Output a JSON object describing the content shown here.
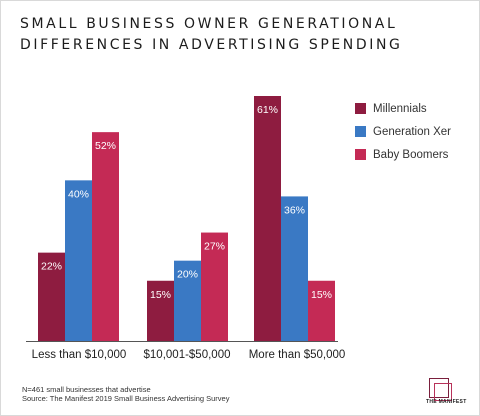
{
  "title_lines": [
    "SMALL BUSINESS OWNER GENERATIONAL",
    "DIFFERENCES IN ADVERTISING SPENDING"
  ],
  "chart_data": {
    "type": "bar",
    "categories": [
      "Less than $10,000",
      "$10,001-$50,000",
      "More than $50,000"
    ],
    "series": [
      {
        "name": "Millennials",
        "values": [
          22,
          15,
          61
        ],
        "color": "#8e1c40"
      },
      {
        "name": "Generation Xer",
        "values": [
          40,
          20,
          36
        ],
        "color": "#3a79c4"
      },
      {
        "name": "Baby Boomers",
        "values": [
          52,
          27,
          15
        ],
        "color": "#c42a55"
      }
    ],
    "value_suffix": "%",
    "ylim": [
      0,
      61
    ],
    "grid": false,
    "legend_position": "top-right"
  },
  "footer": {
    "note": "N=461 small businesses that advertise",
    "source": "Source: The Manifest 2019 Small Business Advertising Survey"
  },
  "logo": {
    "text": "THE MANIFEST"
  }
}
